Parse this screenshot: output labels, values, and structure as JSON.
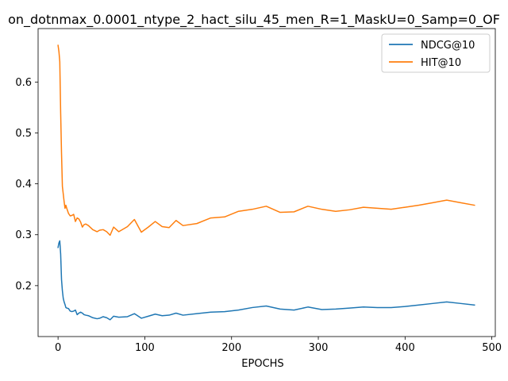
{
  "chart_data": {
    "type": "line",
    "title": "on_dotnmax_0.0001_ntype_2_hact_silu_45_men_R=1_MaskU=0_Samp=0_OF",
    "xlabel": "EPOCHS",
    "ylabel": "",
    "xlim": [
      -23,
      504
    ],
    "ylim": [
      0.1,
      0.705
    ],
    "xticks": [
      0,
      100,
      200,
      300,
      400,
      500
    ],
    "yticks": [
      0.2,
      0.3,
      0.4,
      0.5,
      0.6
    ],
    "grid": false,
    "legend_position": "top-right",
    "series": [
      {
        "name": "NDCG@10",
        "color": "#1f77b4",
        "x": [
          0,
          1,
          2,
          3,
          4,
          5,
          6,
          7,
          8,
          9,
          10,
          12,
          14,
          16,
          18,
          20,
          22,
          24,
          26,
          28,
          30,
          32,
          35,
          40,
          45,
          48,
          52,
          56,
          60,
          64,
          70,
          80,
          88,
          96,
          104,
          112,
          120,
          128,
          136,
          144,
          160,
          176,
          192,
          208,
          224,
          240,
          256,
          272,
          288,
          304,
          320,
          336,
          352,
          368,
          384,
          400,
          416,
          432,
          448,
          464,
          480
        ],
        "y": [
          0.275,
          0.284,
          0.288,
          0.262,
          0.212,
          0.19,
          0.175,
          0.168,
          0.163,
          0.157,
          0.156,
          0.155,
          0.15,
          0.149,
          0.15,
          0.152,
          0.143,
          0.146,
          0.148,
          0.146,
          0.143,
          0.142,
          0.141,
          0.137,
          0.135,
          0.136,
          0.139,
          0.137,
          0.133,
          0.14,
          0.138,
          0.139,
          0.145,
          0.136,
          0.14,
          0.144,
          0.141,
          0.142,
          0.146,
          0.142,
          0.145,
          0.148,
          0.149,
          0.152,
          0.157,
          0.16,
          0.154,
          0.152,
          0.158,
          0.153,
          0.154,
          0.156,
          0.158,
          0.157,
          0.157,
          0.159,
          0.162,
          0.165,
          0.168,
          0.165,
          0.162
        ]
      },
      {
        "name": "HIT@10",
        "color": "#ff7f0e",
        "x": [
          0,
          1,
          2,
          3,
          4,
          5,
          6,
          7,
          8,
          9,
          10,
          12,
          14,
          16,
          18,
          20,
          22,
          24,
          26,
          28,
          30,
          32,
          35,
          40,
          45,
          48,
          52,
          56,
          60,
          64,
          70,
          80,
          88,
          96,
          104,
          112,
          120,
          128,
          136,
          144,
          160,
          176,
          192,
          208,
          224,
          240,
          256,
          272,
          288,
          304,
          320,
          336,
          352,
          368,
          384,
          400,
          416,
          432,
          448,
          464,
          480
        ],
        "y": [
          0.672,
          0.66,
          0.64,
          0.54,
          0.46,
          0.395,
          0.38,
          0.365,
          0.352,
          0.358,
          0.352,
          0.342,
          0.337,
          0.338,
          0.34,
          0.326,
          0.333,
          0.331,
          0.325,
          0.315,
          0.32,
          0.321,
          0.318,
          0.31,
          0.306,
          0.309,
          0.31,
          0.306,
          0.299,
          0.315,
          0.306,
          0.316,
          0.33,
          0.305,
          0.315,
          0.326,
          0.316,
          0.314,
          0.328,
          0.318,
          0.322,
          0.333,
          0.335,
          0.346,
          0.35,
          0.356,
          0.344,
          0.345,
          0.356,
          0.35,
          0.346,
          0.349,
          0.354,
          0.352,
          0.35,
          0.354,
          0.358,
          0.363,
          0.368,
          0.363,
          0.358
        ]
      }
    ]
  }
}
